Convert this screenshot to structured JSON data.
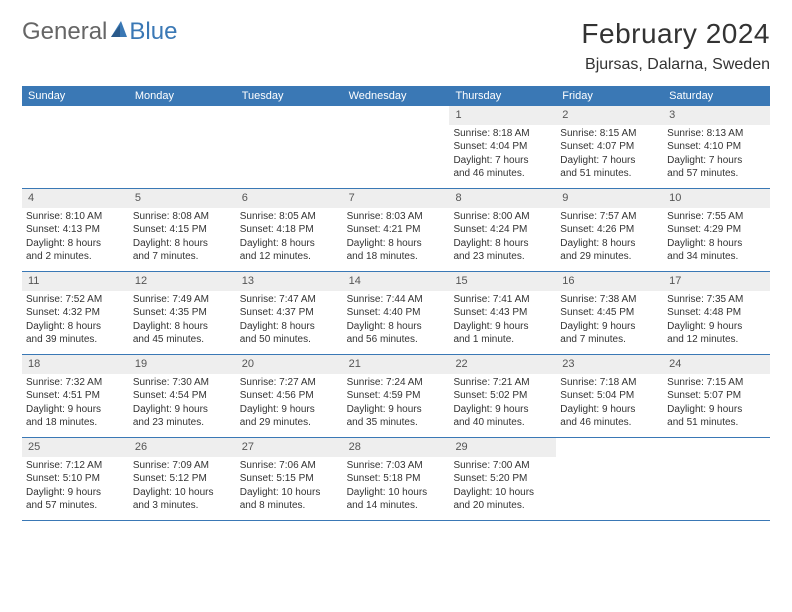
{
  "logo": {
    "text1": "General",
    "text2": "Blue"
  },
  "title": "February 2024",
  "location": "Bjursas, Dalarna, Sweden",
  "colors": {
    "header_bg": "#3a78b5",
    "header_text": "#ffffff",
    "day_num_bg": "#eeeeee",
    "text": "#333333",
    "logo_gray": "#666666",
    "logo_blue": "#3a78b5",
    "border": "#3a78b5"
  },
  "weekdays": [
    "Sunday",
    "Monday",
    "Tuesday",
    "Wednesday",
    "Thursday",
    "Friday",
    "Saturday"
  ],
  "weeks": [
    [
      {
        "empty": true
      },
      {
        "empty": true
      },
      {
        "empty": true
      },
      {
        "empty": true
      },
      {
        "day": "1",
        "sunrise": "Sunrise: 8:18 AM",
        "sunset": "Sunset: 4:04 PM",
        "daylight1": "Daylight: 7 hours",
        "daylight2": "and 46 minutes."
      },
      {
        "day": "2",
        "sunrise": "Sunrise: 8:15 AM",
        "sunset": "Sunset: 4:07 PM",
        "daylight1": "Daylight: 7 hours",
        "daylight2": "and 51 minutes."
      },
      {
        "day": "3",
        "sunrise": "Sunrise: 8:13 AM",
        "sunset": "Sunset: 4:10 PM",
        "daylight1": "Daylight: 7 hours",
        "daylight2": "and 57 minutes."
      }
    ],
    [
      {
        "day": "4",
        "sunrise": "Sunrise: 8:10 AM",
        "sunset": "Sunset: 4:13 PM",
        "daylight1": "Daylight: 8 hours",
        "daylight2": "and 2 minutes."
      },
      {
        "day": "5",
        "sunrise": "Sunrise: 8:08 AM",
        "sunset": "Sunset: 4:15 PM",
        "daylight1": "Daylight: 8 hours",
        "daylight2": "and 7 minutes."
      },
      {
        "day": "6",
        "sunrise": "Sunrise: 8:05 AM",
        "sunset": "Sunset: 4:18 PM",
        "daylight1": "Daylight: 8 hours",
        "daylight2": "and 12 minutes."
      },
      {
        "day": "7",
        "sunrise": "Sunrise: 8:03 AM",
        "sunset": "Sunset: 4:21 PM",
        "daylight1": "Daylight: 8 hours",
        "daylight2": "and 18 minutes."
      },
      {
        "day": "8",
        "sunrise": "Sunrise: 8:00 AM",
        "sunset": "Sunset: 4:24 PM",
        "daylight1": "Daylight: 8 hours",
        "daylight2": "and 23 minutes."
      },
      {
        "day": "9",
        "sunrise": "Sunrise: 7:57 AM",
        "sunset": "Sunset: 4:26 PM",
        "daylight1": "Daylight: 8 hours",
        "daylight2": "and 29 minutes."
      },
      {
        "day": "10",
        "sunrise": "Sunrise: 7:55 AM",
        "sunset": "Sunset: 4:29 PM",
        "daylight1": "Daylight: 8 hours",
        "daylight2": "and 34 minutes."
      }
    ],
    [
      {
        "day": "11",
        "sunrise": "Sunrise: 7:52 AM",
        "sunset": "Sunset: 4:32 PM",
        "daylight1": "Daylight: 8 hours",
        "daylight2": "and 39 minutes."
      },
      {
        "day": "12",
        "sunrise": "Sunrise: 7:49 AM",
        "sunset": "Sunset: 4:35 PM",
        "daylight1": "Daylight: 8 hours",
        "daylight2": "and 45 minutes."
      },
      {
        "day": "13",
        "sunrise": "Sunrise: 7:47 AM",
        "sunset": "Sunset: 4:37 PM",
        "daylight1": "Daylight: 8 hours",
        "daylight2": "and 50 minutes."
      },
      {
        "day": "14",
        "sunrise": "Sunrise: 7:44 AM",
        "sunset": "Sunset: 4:40 PM",
        "daylight1": "Daylight: 8 hours",
        "daylight2": "and 56 minutes."
      },
      {
        "day": "15",
        "sunrise": "Sunrise: 7:41 AM",
        "sunset": "Sunset: 4:43 PM",
        "daylight1": "Daylight: 9 hours",
        "daylight2": "and 1 minute."
      },
      {
        "day": "16",
        "sunrise": "Sunrise: 7:38 AM",
        "sunset": "Sunset: 4:45 PM",
        "daylight1": "Daylight: 9 hours",
        "daylight2": "and 7 minutes."
      },
      {
        "day": "17",
        "sunrise": "Sunrise: 7:35 AM",
        "sunset": "Sunset: 4:48 PM",
        "daylight1": "Daylight: 9 hours",
        "daylight2": "and 12 minutes."
      }
    ],
    [
      {
        "day": "18",
        "sunrise": "Sunrise: 7:32 AM",
        "sunset": "Sunset: 4:51 PM",
        "daylight1": "Daylight: 9 hours",
        "daylight2": "and 18 minutes."
      },
      {
        "day": "19",
        "sunrise": "Sunrise: 7:30 AM",
        "sunset": "Sunset: 4:54 PM",
        "daylight1": "Daylight: 9 hours",
        "daylight2": "and 23 minutes."
      },
      {
        "day": "20",
        "sunrise": "Sunrise: 7:27 AM",
        "sunset": "Sunset: 4:56 PM",
        "daylight1": "Daylight: 9 hours",
        "daylight2": "and 29 minutes."
      },
      {
        "day": "21",
        "sunrise": "Sunrise: 7:24 AM",
        "sunset": "Sunset: 4:59 PM",
        "daylight1": "Daylight: 9 hours",
        "daylight2": "and 35 minutes."
      },
      {
        "day": "22",
        "sunrise": "Sunrise: 7:21 AM",
        "sunset": "Sunset: 5:02 PM",
        "daylight1": "Daylight: 9 hours",
        "daylight2": "and 40 minutes."
      },
      {
        "day": "23",
        "sunrise": "Sunrise: 7:18 AM",
        "sunset": "Sunset: 5:04 PM",
        "daylight1": "Daylight: 9 hours",
        "daylight2": "and 46 minutes."
      },
      {
        "day": "24",
        "sunrise": "Sunrise: 7:15 AM",
        "sunset": "Sunset: 5:07 PM",
        "daylight1": "Daylight: 9 hours",
        "daylight2": "and 51 minutes."
      }
    ],
    [
      {
        "day": "25",
        "sunrise": "Sunrise: 7:12 AM",
        "sunset": "Sunset: 5:10 PM",
        "daylight1": "Daylight: 9 hours",
        "daylight2": "and 57 minutes."
      },
      {
        "day": "26",
        "sunrise": "Sunrise: 7:09 AM",
        "sunset": "Sunset: 5:12 PM",
        "daylight1": "Daylight: 10 hours",
        "daylight2": "and 3 minutes."
      },
      {
        "day": "27",
        "sunrise": "Sunrise: 7:06 AM",
        "sunset": "Sunset: 5:15 PM",
        "daylight1": "Daylight: 10 hours",
        "daylight2": "and 8 minutes."
      },
      {
        "day": "28",
        "sunrise": "Sunrise: 7:03 AM",
        "sunset": "Sunset: 5:18 PM",
        "daylight1": "Daylight: 10 hours",
        "daylight2": "and 14 minutes."
      },
      {
        "day": "29",
        "sunrise": "Sunrise: 7:00 AM",
        "sunset": "Sunset: 5:20 PM",
        "daylight1": "Daylight: 10 hours",
        "daylight2": "and 20 minutes."
      },
      {
        "empty": true
      },
      {
        "empty": true
      }
    ]
  ]
}
